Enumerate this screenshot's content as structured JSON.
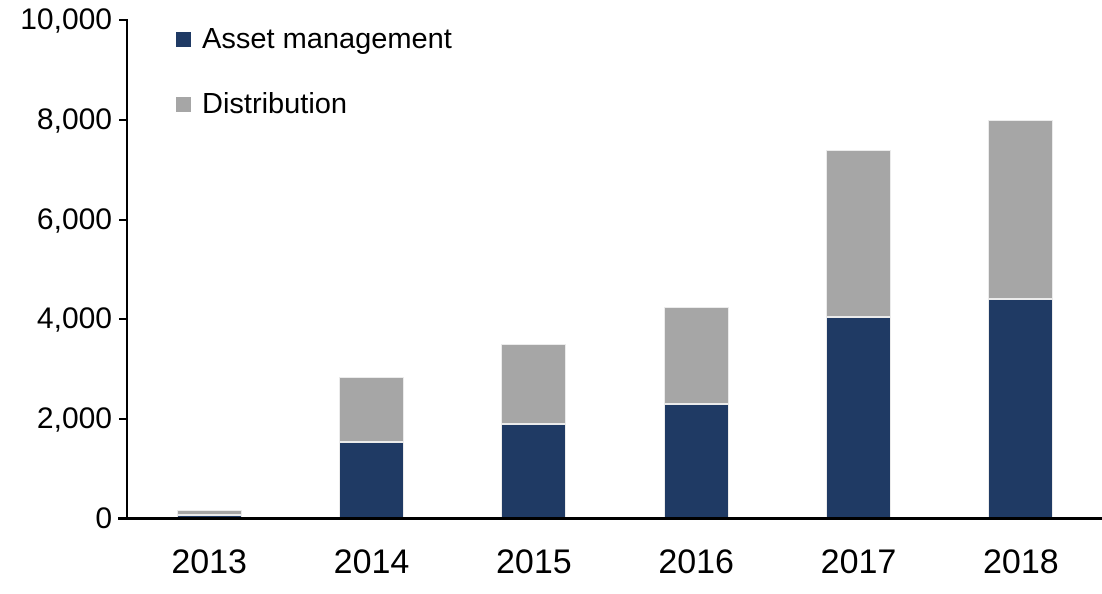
{
  "chart_data": {
    "type": "bar",
    "stacked": true,
    "title": "",
    "xlabel": "",
    "ylabel": "",
    "categories": [
      "2013",
      "2014",
      "2015",
      "2016",
      "2017",
      "2018"
    ],
    "series": [
      {
        "name": "Asset management",
        "color": "#1f3a64",
        "values": [
          80,
          1550,
          1900,
          2300,
          4050,
          4400
        ]
      },
      {
        "name": "Distribution",
        "color": "#a6a6a6",
        "values": [
          100,
          1300,
          1600,
          1950,
          3350,
          3600
        ]
      }
    ],
    "totals": [
      180,
      2850,
      3500,
      4250,
      7400,
      8000
    ],
    "ylim": [
      0,
      10000
    ],
    "yticks": [
      0,
      2000,
      4000,
      6000,
      8000,
      10000
    ],
    "ytick_labels": [
      "0",
      "2,000",
      "4,000",
      "6,000",
      "8,000",
      "10,000"
    ],
    "grid": false,
    "legend_position": "top-left-inside",
    "axis_color": "#000000",
    "text_color": "#000000",
    "background_color": "#ffffff"
  }
}
